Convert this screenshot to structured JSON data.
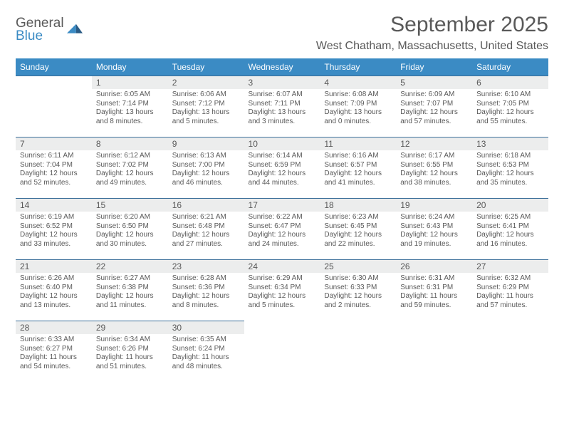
{
  "logo": {
    "line1": "General",
    "line2": "Blue"
  },
  "title": "September 2025",
  "location": "West Chatham, Massachusetts, United States",
  "colors": {
    "header_bg": "#3b8bc4",
    "header_text": "#ffffff",
    "border": "#3b6f9a",
    "daynum_bg": "#eceded",
    "text": "#595959",
    "logo_blue": "#3b8bc4",
    "logo_dark": "#2a5b85"
  },
  "day_headers": [
    "Sunday",
    "Monday",
    "Tuesday",
    "Wednesday",
    "Thursday",
    "Friday",
    "Saturday"
  ],
  "weeks": [
    [
      {
        "num": "",
        "lines": []
      },
      {
        "num": "1",
        "lines": [
          "Sunrise: 6:05 AM",
          "Sunset: 7:14 PM",
          "Daylight: 13 hours and 8 minutes."
        ]
      },
      {
        "num": "2",
        "lines": [
          "Sunrise: 6:06 AM",
          "Sunset: 7:12 PM",
          "Daylight: 13 hours and 5 minutes."
        ]
      },
      {
        "num": "3",
        "lines": [
          "Sunrise: 6:07 AM",
          "Sunset: 7:11 PM",
          "Daylight: 13 hours and 3 minutes."
        ]
      },
      {
        "num": "4",
        "lines": [
          "Sunrise: 6:08 AM",
          "Sunset: 7:09 PM",
          "Daylight: 13 hours and 0 minutes."
        ]
      },
      {
        "num": "5",
        "lines": [
          "Sunrise: 6:09 AM",
          "Sunset: 7:07 PM",
          "Daylight: 12 hours and 57 minutes."
        ]
      },
      {
        "num": "6",
        "lines": [
          "Sunrise: 6:10 AM",
          "Sunset: 7:05 PM",
          "Daylight: 12 hours and 55 minutes."
        ]
      }
    ],
    [
      {
        "num": "7",
        "lines": [
          "Sunrise: 6:11 AM",
          "Sunset: 7:04 PM",
          "Daylight: 12 hours and 52 minutes."
        ]
      },
      {
        "num": "8",
        "lines": [
          "Sunrise: 6:12 AM",
          "Sunset: 7:02 PM",
          "Daylight: 12 hours and 49 minutes."
        ]
      },
      {
        "num": "9",
        "lines": [
          "Sunrise: 6:13 AM",
          "Sunset: 7:00 PM",
          "Daylight: 12 hours and 46 minutes."
        ]
      },
      {
        "num": "10",
        "lines": [
          "Sunrise: 6:14 AM",
          "Sunset: 6:59 PM",
          "Daylight: 12 hours and 44 minutes."
        ]
      },
      {
        "num": "11",
        "lines": [
          "Sunrise: 6:16 AM",
          "Sunset: 6:57 PM",
          "Daylight: 12 hours and 41 minutes."
        ]
      },
      {
        "num": "12",
        "lines": [
          "Sunrise: 6:17 AM",
          "Sunset: 6:55 PM",
          "Daylight: 12 hours and 38 minutes."
        ]
      },
      {
        "num": "13",
        "lines": [
          "Sunrise: 6:18 AM",
          "Sunset: 6:53 PM",
          "Daylight: 12 hours and 35 minutes."
        ]
      }
    ],
    [
      {
        "num": "14",
        "lines": [
          "Sunrise: 6:19 AM",
          "Sunset: 6:52 PM",
          "Daylight: 12 hours and 33 minutes."
        ]
      },
      {
        "num": "15",
        "lines": [
          "Sunrise: 6:20 AM",
          "Sunset: 6:50 PM",
          "Daylight: 12 hours and 30 minutes."
        ]
      },
      {
        "num": "16",
        "lines": [
          "Sunrise: 6:21 AM",
          "Sunset: 6:48 PM",
          "Daylight: 12 hours and 27 minutes."
        ]
      },
      {
        "num": "17",
        "lines": [
          "Sunrise: 6:22 AM",
          "Sunset: 6:47 PM",
          "Daylight: 12 hours and 24 minutes."
        ]
      },
      {
        "num": "18",
        "lines": [
          "Sunrise: 6:23 AM",
          "Sunset: 6:45 PM",
          "Daylight: 12 hours and 22 minutes."
        ]
      },
      {
        "num": "19",
        "lines": [
          "Sunrise: 6:24 AM",
          "Sunset: 6:43 PM",
          "Daylight: 12 hours and 19 minutes."
        ]
      },
      {
        "num": "20",
        "lines": [
          "Sunrise: 6:25 AM",
          "Sunset: 6:41 PM",
          "Daylight: 12 hours and 16 minutes."
        ]
      }
    ],
    [
      {
        "num": "21",
        "lines": [
          "Sunrise: 6:26 AM",
          "Sunset: 6:40 PM",
          "Daylight: 12 hours and 13 minutes."
        ]
      },
      {
        "num": "22",
        "lines": [
          "Sunrise: 6:27 AM",
          "Sunset: 6:38 PM",
          "Daylight: 12 hours and 11 minutes."
        ]
      },
      {
        "num": "23",
        "lines": [
          "Sunrise: 6:28 AM",
          "Sunset: 6:36 PM",
          "Daylight: 12 hours and 8 minutes."
        ]
      },
      {
        "num": "24",
        "lines": [
          "Sunrise: 6:29 AM",
          "Sunset: 6:34 PM",
          "Daylight: 12 hours and 5 minutes."
        ]
      },
      {
        "num": "25",
        "lines": [
          "Sunrise: 6:30 AM",
          "Sunset: 6:33 PM",
          "Daylight: 12 hours and 2 minutes."
        ]
      },
      {
        "num": "26",
        "lines": [
          "Sunrise: 6:31 AM",
          "Sunset: 6:31 PM",
          "Daylight: 11 hours and 59 minutes."
        ]
      },
      {
        "num": "27",
        "lines": [
          "Sunrise: 6:32 AM",
          "Sunset: 6:29 PM",
          "Daylight: 11 hours and 57 minutes."
        ]
      }
    ],
    [
      {
        "num": "28",
        "lines": [
          "Sunrise: 6:33 AM",
          "Sunset: 6:27 PM",
          "Daylight: 11 hours and 54 minutes."
        ]
      },
      {
        "num": "29",
        "lines": [
          "Sunrise: 6:34 AM",
          "Sunset: 6:26 PM",
          "Daylight: 11 hours and 51 minutes."
        ]
      },
      {
        "num": "30",
        "lines": [
          "Sunrise: 6:35 AM",
          "Sunset: 6:24 PM",
          "Daylight: 11 hours and 48 minutes."
        ]
      },
      {
        "num": "",
        "lines": []
      },
      {
        "num": "",
        "lines": []
      },
      {
        "num": "",
        "lines": []
      },
      {
        "num": "",
        "lines": []
      }
    ]
  ]
}
